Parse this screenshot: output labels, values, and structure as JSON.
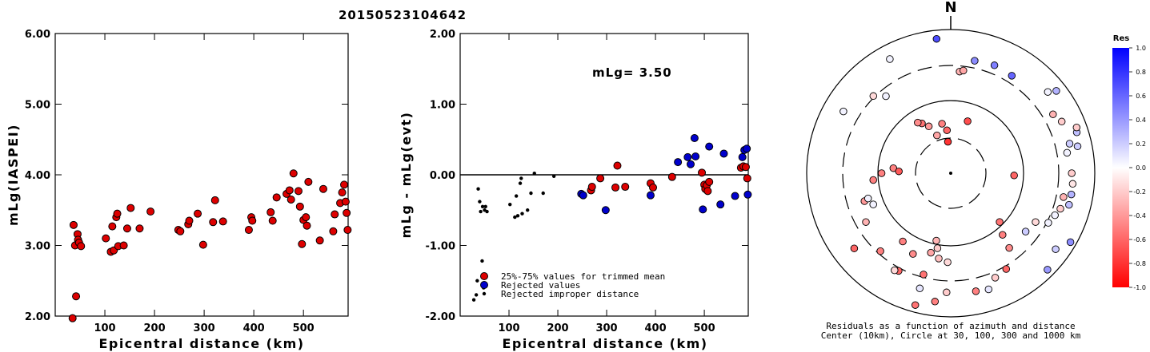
{
  "title": "20150523104642",
  "colors": {
    "red": "#dd0000",
    "blue": "#0000cc",
    "black": "#000000"
  },
  "chart_data": [
    {
      "type": "scatter",
      "ylabel": "mLg(IASPEI)",
      "xlabel": "Epicentral distance (km)",
      "xlim": [
        0,
        590
      ],
      "ylim": [
        2.0,
        6.0
      ],
      "x_ticks": [
        "100",
        "200",
        "300",
        "400",
        "500"
      ],
      "y_ticks": [
        "2.00",
        "3.00",
        "4.00",
        "5.00",
        "6.00"
      ],
      "series": [
        {
          "color": "red",
          "points": [
            [
              37,
              3.29
            ],
            [
              40,
              3.0
            ],
            [
              42,
              2.28
            ],
            [
              45,
              3.16
            ],
            [
              46,
              3.08
            ],
            [
              48,
              3.04
            ],
            [
              52,
              2.99
            ],
            [
              35,
              1.97
            ],
            [
              102,
              3.1
            ],
            [
              112,
              2.91
            ],
            [
              115,
              3.27
            ],
            [
              118,
              2.93
            ],
            [
              123,
              3.4
            ],
            [
              125,
              3.45
            ],
            [
              127,
              2.99
            ],
            [
              138,
              3.0
            ],
            [
              145,
              3.24
            ],
            [
              152,
              3.53
            ],
            [
              170,
              3.24
            ],
            [
              192,
              3.48
            ],
            [
              248,
              3.22
            ],
            [
              252,
              3.2
            ],
            [
              268,
              3.3
            ],
            [
              270,
              3.35
            ],
            [
              287,
              3.45
            ],
            [
              298,
              3.01
            ],
            [
              318,
              3.33
            ],
            [
              322,
              3.64
            ],
            [
              338,
              3.34
            ],
            [
              390,
              3.22
            ],
            [
              395,
              3.4
            ],
            [
              397,
              3.35
            ],
            [
              434,
              3.47
            ],
            [
              438,
              3.35
            ],
            [
              446,
              3.68
            ],
            [
              466,
              3.73
            ],
            [
              472,
              3.78
            ],
            [
              480,
              4.02
            ],
            [
              475,
              3.65
            ],
            [
              490,
              3.77
            ],
            [
              493,
              3.55
            ],
            [
              497,
              3.02
            ],
            [
              500,
              3.36
            ],
            [
              505,
              3.4
            ],
            [
              507,
              3.28
            ],
            [
              510,
              3.9
            ],
            [
              533,
              3.07
            ],
            [
              540,
              3.8
            ],
            [
              560,
              3.2
            ],
            [
              563,
              3.44
            ],
            [
              574,
              3.6
            ],
            [
              578,
              3.75
            ],
            [
              582,
              3.86
            ],
            [
              585,
              3.62
            ],
            [
              587,
              3.46
            ],
            [
              589,
              3.22
            ]
          ]
        }
      ]
    },
    {
      "type": "scatter",
      "ylabel": "mLg - mLg(evt)",
      "xlabel": "Epicentral distance (km)",
      "xlim": [
        0,
        590
      ],
      "ylim": [
        -2.0,
        2.0
      ],
      "x_ticks": [
        "100",
        "200",
        "300",
        "400",
        "500"
      ],
      "y_ticks": [
        "-2.00",
        "-1.00",
        "0.00",
        "1.00",
        "2.00"
      ],
      "annotation": "mLg= 3.50",
      "reference_line": 0.0,
      "legend": [
        {
          "label": "25%-75% values for trimmed mean",
          "color": "red"
        },
        {
          "label": "Rejected values",
          "color": "blue"
        },
        {
          "label": "Rejected improper distance",
          "color": "black"
        }
      ],
      "series": [
        {
          "color": "red",
          "points": [
            [
              268,
              -0.22
            ],
            [
              270,
              -0.17
            ],
            [
              287,
              -0.05
            ],
            [
              318,
              -0.18
            ],
            [
              322,
              0.13
            ],
            [
              338,
              -0.17
            ],
            [
              390,
              -0.12
            ],
            [
              395,
              -0.18
            ],
            [
              434,
              -0.03
            ],
            [
              495,
              0.03
            ],
            [
              500,
              -0.14
            ],
            [
              502,
              -0.2
            ],
            [
              505,
              -0.15
            ],
            [
              507,
              -0.23
            ],
            [
              510,
              -0.1
            ],
            [
              575,
              0.1
            ],
            [
              580,
              0.12
            ],
            [
              585,
              0.11
            ],
            [
              588,
              -0.05
            ]
          ]
        },
        {
          "color": "blue",
          "points": [
            [
              248,
              -0.27
            ],
            [
              252,
              -0.29
            ],
            [
              298,
              -0.5
            ],
            [
              390,
              -0.29
            ],
            [
              446,
              0.18
            ],
            [
              466,
              0.25
            ],
            [
              472,
              0.15
            ],
            [
              480,
              0.52
            ],
            [
              482,
              0.26
            ],
            [
              497,
              -0.49
            ],
            [
              510,
              0.4
            ],
            [
              533,
              -0.42
            ],
            [
              540,
              0.3
            ],
            [
              563,
              -0.3
            ],
            [
              578,
              0.25
            ],
            [
              582,
              0.35
            ],
            [
              587,
              0.37
            ],
            [
              589,
              -0.28
            ]
          ]
        },
        {
          "color": "black",
          "points": [
            [
              28,
              -1.77
            ],
            [
              33,
              -1.7
            ],
            [
              35,
              -1.5
            ],
            [
              37,
              -0.2
            ],
            [
              40,
              -0.38
            ],
            [
              42,
              -0.52
            ],
            [
              45,
              -1.22
            ],
            [
              46,
              -0.45
            ],
            [
              48,
              -1.6
            ],
            [
              50,
              -0.5
            ],
            [
              52,
              -0.45
            ],
            [
              55,
              -0.52
            ],
            [
              102,
              -0.42
            ],
            [
              112,
              -0.6
            ],
            [
              115,
              -0.3
            ],
            [
              118,
              -0.58
            ],
            [
              123,
              -0.12
            ],
            [
              125,
              -0.05
            ],
            [
              127,
              -0.55
            ],
            [
              138,
              -0.5
            ],
            [
              145,
              -0.26
            ],
            [
              152,
              0.02
            ],
            [
              170,
              -0.26
            ],
            [
              192,
              -0.02
            ]
          ]
        }
      ]
    },
    {
      "type": "polar-scatter",
      "north_label": "N",
      "caption_line1": "Residuals as a function of azimuth and distance",
      "caption_line2": "Center (10km), Circle at 30, 100, 300 and 1000 km",
      "colorbar": {
        "title": "Res",
        "ticks": [
          "1.0",
          "0.8",
          "0.6",
          "0.4",
          "0.2",
          "0.0",
          "-0.2",
          "-0.4",
          "-0.6",
          "-0.8",
          "-1.0"
        ]
      },
      "series": [
        {
          "points": [
            [
              12,
              0.8,
              0.45
            ],
            [
              22,
              0.81,
              0.5
            ],
            [
              32,
              0.8,
              0.6
            ],
            [
              5,
              0.71,
              -0.3
            ],
            [
              7,
              0.72,
              -0.35
            ],
            [
              18,
              0.38,
              -0.7
            ],
            [
              -6,
              0.94,
              0.7
            ],
            [
              -28,
              0.9,
              0.05
            ],
            [
              -45,
              0.76,
              -0.15
            ],
            [
              -40,
              0.7,
              0.05
            ],
            [
              -60,
              0.86,
              0.05
            ],
            [
              -85,
              0.4,
              -0.5
            ],
            [
              -88,
              0.36,
              -0.65
            ],
            [
              -10,
              0.35,
              -0.5
            ],
            [
              -30,
              0.4,
              -0.55
            ],
            [
              -33,
              0.42,
              -0.45
            ],
            [
              -25,
              0.36,
              -0.4
            ],
            [
              -20,
              0.28,
              -0.35
            ],
            [
              -5,
              0.3,
              -0.6
            ],
            [
              -5,
              0.22,
              -0.8
            ],
            [
              -90,
              0.48,
              -0.5
            ],
            [
              -95,
              0.54,
              -0.5
            ],
            [
              -108,
              0.63,
              -0.4
            ],
            [
              -128,
              0.85,
              -0.6
            ],
            [
              -120,
              0.68,
              -0.3
            ],
            [
              -138,
              0.73,
              -0.5
            ],
            [
              -152,
              0.77,
              -0.6
            ],
            [
              -145,
              0.58,
              -0.5
            ],
            [
              -155,
              0.62,
              -0.45
            ],
            [
              -166,
              0.57,
              -0.35
            ],
            [
              -168,
              0.48,
              -0.3
            ],
            [
              -170,
              0.53,
              -0.2
            ],
            [
              -172,
              0.6,
              -0.25
            ],
            [
              -178,
              0.62,
              -0.15
            ],
            [
              -165,
              0.83,
              0.1
            ],
            [
              -178,
              0.83,
              -0.2
            ],
            [
              -173,
              0.9,
              -0.5
            ],
            [
              -165,
              0.95,
              -0.55
            ],
            [
              -150,
              0.78,
              -0.15
            ],
            [
              168,
              0.84,
              -0.5
            ],
            [
              162,
              0.85,
              0.1
            ],
            [
              150,
              0.77,
              -0.6
            ],
            [
              142,
              0.66,
              -0.45
            ],
            [
              140,
              0.56,
              -0.5
            ],
            [
              135,
              0.48,
              -0.55
            ],
            [
              128,
              0.66,
              0.2
            ],
            [
              126,
              0.9,
              0.2
            ],
            [
              120,
              0.68,
              -0.15
            ],
            [
              117,
              0.76,
              0.05
            ],
            [
              112,
              0.78,
              0.05
            ],
            [
              108,
              0.8,
              -0.2
            ],
            [
              105,
              0.85,
              0.25
            ],
            [
              102,
              0.8,
              -0.3
            ],
            [
              100,
              0.85,
              0.3
            ],
            [
              95,
              0.85,
              -0.1
            ],
            [
              90,
              0.84,
              -0.2
            ],
            [
              80,
              0.82,
              0.05
            ],
            [
              78,
              0.9,
              0.2
            ],
            [
              76,
              0.85,
              0.2
            ],
            [
              72,
              0.92,
              0.25
            ],
            [
              70,
              0.93,
              -0.2
            ],
            [
              65,
              0.85,
              -0.2
            ],
            [
              60,
              0.82,
              -0.3
            ],
            [
              52,
              0.93,
              0.3
            ],
            [
              50,
              0.88,
              0.05
            ],
            [
              92,
              0.44,
              -0.6
            ],
            [
              135,
              0.95,
              0.4
            ],
            [
              120,
              0.96,
              0.45
            ],
            [
              -165,
              0.73,
              -0.55
            ],
            [
              157,
              0.79,
              -0.2
            ],
            [
              -107,
              0.6,
              0.05
            ],
            [
              -112,
              0.58,
              0.05
            ]
          ]
        }
      ]
    }
  ]
}
